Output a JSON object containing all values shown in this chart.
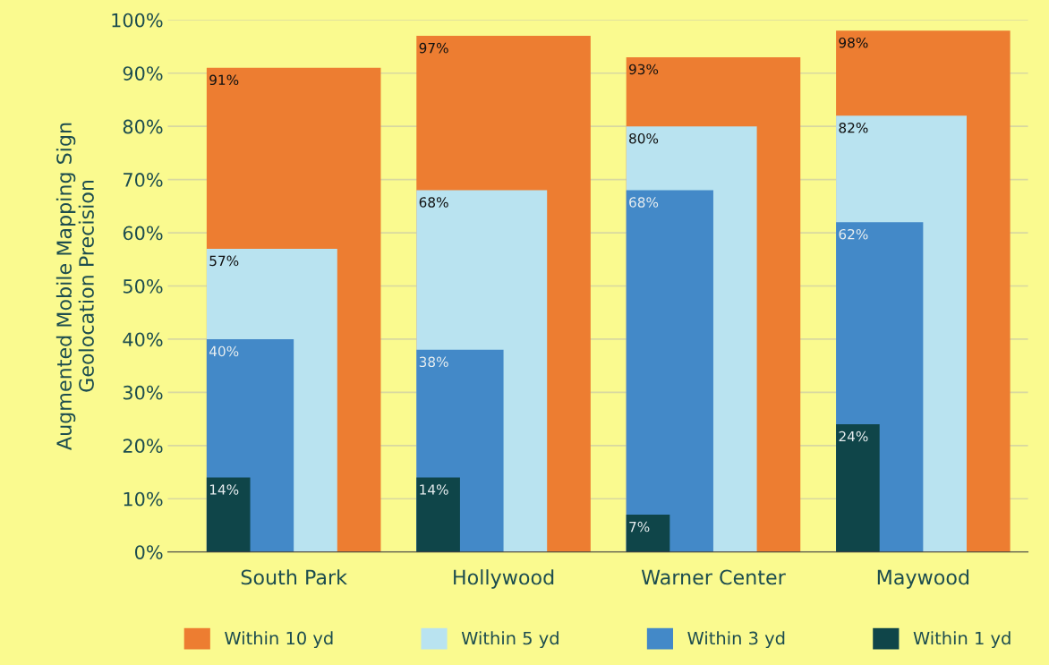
{
  "chart_data": {
    "type": "bar",
    "ylabel": "Augmented Mobile Mapping Sign\nGeolocation Precision",
    "categories": [
      "South Park",
      "Hollywood",
      "Warner Center",
      "Maywood"
    ],
    "series": [
      {
        "name": "Within 10 yd",
        "color": "#ed7d31",
        "values": [
          91,
          97,
          93,
          98
        ],
        "value_labels": [
          "91%",
          "97%",
          "93%",
          "98%"
        ]
      },
      {
        "name": "Within 5 yd",
        "color": "#b9e3f0",
        "values": [
          57,
          68,
          80,
          82
        ],
        "value_labels": [
          "57%",
          "68%",
          "80%",
          "82%"
        ]
      },
      {
        "name": "Within 3 yd",
        "color": "#4389c8",
        "values": [
          40,
          38,
          68,
          62
        ],
        "value_labels": [
          "40%",
          "38%",
          "68%",
          "62%"
        ]
      },
      {
        "name": "Within 1 yd",
        "color": "#0f4549",
        "values": [
          14,
          14,
          7,
          24
        ],
        "value_labels": [
          "14%",
          "14%",
          "7%",
          "24%"
        ]
      }
    ],
    "ylim": [
      0,
      100
    ],
    "yticks": [
      {
        "value": 0,
        "label": "0%"
      },
      {
        "value": 10,
        "label": "10%"
      },
      {
        "value": 20,
        "label": "20%"
      },
      {
        "value": 30,
        "label": "30%"
      },
      {
        "value": 40,
        "label": "40%"
      },
      {
        "value": 50,
        "label": "50%"
      },
      {
        "value": 60,
        "label": "60%"
      },
      {
        "value": 70,
        "label": "70%"
      },
      {
        "value": 80,
        "label": "80%"
      },
      {
        "value": 90,
        "label": "90%"
      },
      {
        "value": 100,
        "label": "100%"
      }
    ],
    "grid": "y",
    "legend": "bottom"
  }
}
